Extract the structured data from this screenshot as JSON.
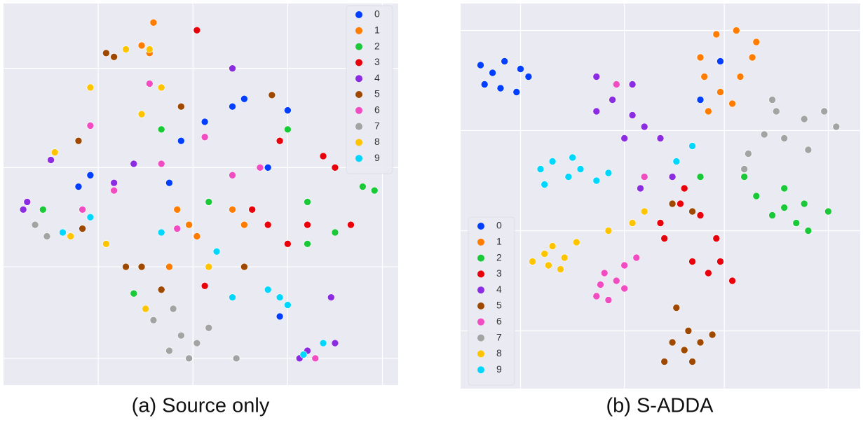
{
  "chart_data": [
    {
      "type": "scatter",
      "title": "(a) Source only",
      "xlim": [
        0,
        100
      ],
      "ylim": [
        0,
        100
      ],
      "xticks": [
        24,
        48,
        72,
        96
      ],
      "yticks": [
        7,
        31,
        57,
        83
      ],
      "grid": true,
      "legend": "upper right",
      "series": [
        {
          "name": "0",
          "color": "#023eff",
          "x": [
            58,
            61,
            72,
            19,
            42,
            51,
            67,
            70,
            45,
            22
          ],
          "values": [
            73,
            75,
            72,
            52,
            53,
            69,
            57,
            18,
            64,
            55
          ]
        },
        {
          "name": "1",
          "color": "#ff7c00",
          "x": [
            38,
            37,
            35,
            58,
            61,
            47,
            44,
            49,
            42,
            15
          ],
          "values": [
            95,
            87,
            89,
            46,
            42,
            42,
            46,
            39,
            31,
            40
          ]
        },
        {
          "name": "2",
          "color": "#1ac938",
          "x": [
            91,
            94,
            72,
            40,
            33,
            77,
            84,
            52,
            10,
            77
          ],
          "values": [
            52,
            51,
            67,
            67,
            24,
            37,
            40,
            48,
            46,
            48
          ]
        },
        {
          "name": "3",
          "color": "#e8000b",
          "x": [
            70,
            84,
            88,
            72,
            67,
            81,
            77,
            51,
            49,
            63
          ],
          "values": [
            64,
            57,
            42,
            37,
            42,
            60,
            42,
            26,
            93,
            46
          ]
        },
        {
          "name": "4",
          "color": "#8b2be2",
          "x": [
            6,
            5,
            33,
            28,
            83,
            84,
            77,
            75,
            12,
            58
          ],
          "values": [
            48,
            46,
            58,
            53,
            23,
            11,
            9,
            7,
            59,
            83
          ]
        },
        {
          "name": "5",
          "color": "#9f4800",
          "x": [
            26,
            28,
            45,
            68,
            35,
            31,
            40,
            20,
            19,
            61
          ],
          "values": [
            87,
            86,
            73,
            76,
            31,
            31,
            25,
            41,
            64,
            31
          ]
        },
        {
          "name": "6",
          "color": "#f14cc1",
          "x": [
            65,
            37,
            51,
            22,
            79,
            20,
            40,
            58,
            44,
            28
          ],
          "values": [
            57,
            79,
            65,
            68,
            7,
            46,
            58,
            55,
            41,
            51
          ]
        },
        {
          "name": "7",
          "color": "#a3a3a3",
          "x": [
            45,
            49,
            42,
            52,
            59,
            38,
            8,
            11,
            43,
            47
          ],
          "values": [
            13,
            11,
            9,
            15,
            7,
            17,
            42,
            39,
            20,
            7
          ]
        },
        {
          "name": "8",
          "color": "#ffc400",
          "x": [
            37,
            31,
            22,
            35,
            17,
            26,
            36,
            52,
            40,
            13
          ],
          "values": [
            88,
            88,
            78,
            71,
            39,
            37,
            20,
            31,
            78,
            61
          ]
        },
        {
          "name": "9",
          "color": "#00d7ff",
          "x": [
            70,
            72,
            67,
            76,
            81,
            58,
            15,
            22,
            40,
            54
          ],
          "values": [
            23,
            21,
            25,
            8,
            11,
            23,
            40,
            44,
            40,
            35
          ]
        }
      ]
    },
    {
      "type": "scatter",
      "title": "(b) S-ADDA",
      "xlim": [
        0,
        100
      ],
      "ylim": [
        0,
        100
      ],
      "xticks": [
        15,
        41,
        66,
        92
      ],
      "yticks": [
        15,
        41,
        67,
        93
      ],
      "grid": true,
      "legend": "lower left",
      "series": [
        {
          "name": "0",
          "color": "#023eff",
          "x": [
            5,
            8,
            11,
            15,
            17,
            6,
            10,
            14,
            60,
            65
          ],
          "values": [
            84,
            82,
            85,
            83,
            81,
            79,
            78,
            77,
            75,
            85
          ]
        },
        {
          "name": "1",
          "color": "#ff7c00",
          "x": [
            64,
            69,
            73,
            60,
            65,
            70,
            62,
            68,
            74,
            61
          ],
          "values": [
            92,
            93,
            86,
            86,
            77,
            81,
            72,
            74,
            90,
            81
          ]
        },
        {
          "name": "2",
          "color": "#1ac938",
          "x": [
            74,
            81,
            86,
            92,
            78,
            84,
            87,
            81,
            71,
            60
          ],
          "values": [
            50,
            52,
            48,
            46,
            45,
            43,
            41,
            47,
            55,
            55
          ]
        },
        {
          "name": "3",
          "color": "#e8000b",
          "x": [
            55,
            60,
            64,
            65,
            68,
            58,
            51,
            62,
            56,
            50
          ],
          "values": [
            48,
            45,
            39,
            33,
            28,
            33,
            39,
            30,
            52,
            43
          ]
        },
        {
          "name": "4",
          "color": "#8b2be2",
          "x": [
            34,
            38,
            43,
            34,
            41,
            46,
            50,
            43,
            53,
            45
          ],
          "values": [
            81,
            75,
            79,
            72,
            65,
            68,
            65,
            71,
            55,
            52
          ]
        },
        {
          "name": "5",
          "color": "#9f4800",
          "x": [
            54,
            57,
            60,
            53,
            58,
            51,
            63,
            56,
            58,
            53
          ],
          "values": [
            21,
            15,
            12,
            12,
            7,
            7,
            14,
            10,
            46,
            48
          ]
        },
        {
          "name": "6",
          "color": "#f14cc1",
          "x": [
            36,
            39,
            34,
            37,
            41,
            44,
            35,
            41,
            39,
            46
          ],
          "values": [
            30,
            28,
            24,
            23,
            32,
            34,
            27,
            26,
            79,
            55
          ]
        },
        {
          "name": "7",
          "color": "#a3a3a3",
          "x": [
            79,
            86,
            91,
            94,
            81,
            87,
            76,
            72,
            71,
            78
          ],
          "values": [
            72,
            70,
            72,
            68,
            65,
            62,
            66,
            61,
            57,
            75
          ]
        },
        {
          "name": "8",
          "color": "#ffc400",
          "x": [
            21,
            23,
            26,
            22,
            25,
            29,
            18,
            43,
            46,
            37
          ],
          "values": [
            35,
            37,
            34,
            32,
            31,
            38,
            33,
            43,
            46,
            41
          ]
        },
        {
          "name": "9",
          "color": "#00d7ff",
          "x": [
            20,
            23,
            27,
            30,
            34,
            21,
            37,
            28,
            54,
            58
          ],
          "values": [
            57,
            59,
            55,
            57,
            54,
            53,
            56,
            60,
            59,
            63
          ]
        }
      ]
    }
  ]
}
